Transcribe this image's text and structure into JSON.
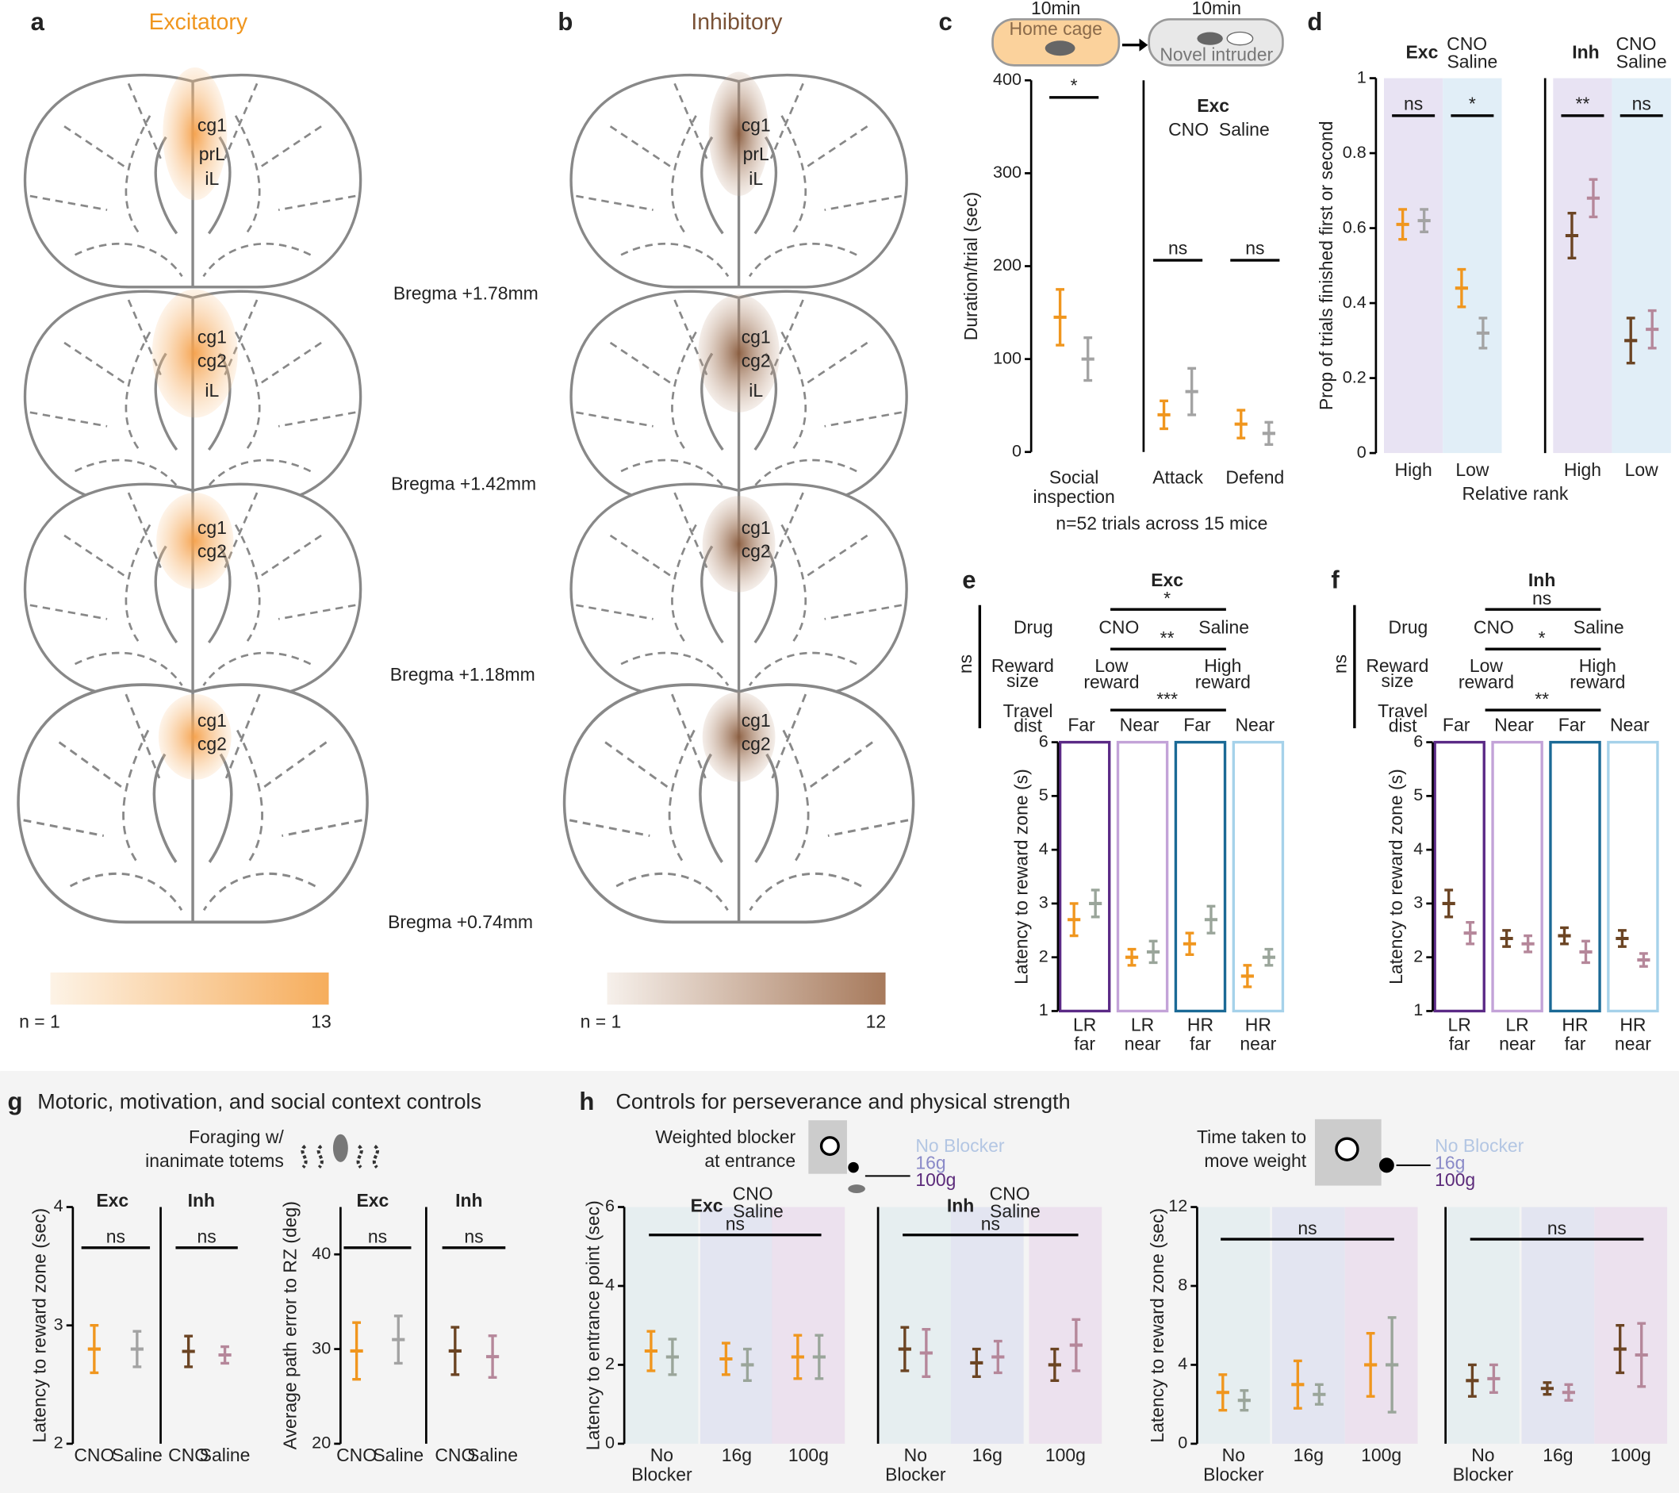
{
  "panels": {
    "a": {
      "letter": "a",
      "title": "Excitatory",
      "regions": [
        [
          "cg1",
          "prL",
          "iL"
        ],
        [
          "cg1",
          "cg2",
          "iL"
        ],
        [
          "cg1",
          "cg2"
        ],
        [
          "cg1",
          "cg2"
        ]
      ],
      "colorbar": {
        "min_label": "n = 1",
        "max": 13
      }
    },
    "b": {
      "letter": "b",
      "title": "Inhibitory",
      "regions": [
        [
          "cg1",
          "prL",
          "iL"
        ],
        [
          "cg1",
          "cg2",
          "iL"
        ],
        [
          "cg1",
          "cg2"
        ],
        [
          "cg1",
          "cg2"
        ]
      ],
      "colorbar": {
        "min_label": "n = 1",
        "max": 12
      }
    },
    "c": {
      "letter": "c",
      "timeline": [
        {
          "duration": "10min",
          "label": "Home cage"
        },
        {
          "duration": "10min",
          "label": "Novel intruder"
        }
      ],
      "note": "n=52 trials across 15 mice"
    },
    "d": {
      "letter": "d",
      "xlabel": "Relative rank"
    },
    "e": {
      "letter": "e"
    },
    "f": {
      "letter": "f"
    },
    "g": {
      "letter": "g",
      "title": "Motoric, motivation, and social context controls",
      "task": [
        "Foraging w/",
        "inanimate totems"
      ]
    },
    "h": {
      "letter": "h",
      "title": "Controls for perseverance and physical strength",
      "tasks": [
        [
          "Weighted blocker",
          "at entrance"
        ],
        [
          "Time taken to",
          "move weight"
        ]
      ],
      "conditions": [
        "No Blocker",
        "16g",
        "100g"
      ]
    }
  },
  "bregma": [
    "Bregma +1.78mm",
    "Bregma +1.42mm",
    "Bregma +1.18mm",
    "Bregma +0.74mm"
  ],
  "chart_data": [
    {
      "type": "errorbar",
      "ylim": [
        0,
        400
      ],
      "yticks": [
        0,
        100,
        200,
        300,
        400
      ],
      "ylabel": "Duration/trial (sec)",
      "categories": [
        [
          "Social",
          "inspection"
        ],
        "Attack",
        "Defend"
      ],
      "series": [
        {
          "name": "CNO",
          "color": "#f0961e",
          "values": [
            145,
            40,
            30
          ],
          "errors": [
            30,
            15,
            15
          ]
        },
        {
          "name": "Saline",
          "color": "#a3a3a3",
          "values": [
            100,
            65,
            20
          ],
          "errors": [
            23,
            25,
            12
          ]
        }
      ],
      "sig": [
        "*",
        "ns",
        "ns"
      ],
      "legend_title": "Exc"
    },
    {
      "type": "errorbar",
      "ylim": [
        0,
        1
      ],
      "yticks": [
        0,
        0.2,
        0.4,
        0.6,
        0.8,
        1
      ],
      "ylabel": "Prop of trials finished first or second",
      "categories": [
        "High",
        "Low"
      ],
      "category_colors": [
        "#2d2d80",
        "#3b8fd0"
      ],
      "band_colors": [
        "#e8e3f3",
        "#e1eef7"
      ],
      "series": [
        {
          "name": "CNO",
          "color": "#f0961e",
          "values": [
            0.61,
            0.44
          ],
          "errors": [
            0.04,
            0.05
          ]
        },
        {
          "name": "Saline",
          "color": "#a3a3a3",
          "values": [
            0.62,
            0.32
          ],
          "errors": [
            0.03,
            0.04
          ]
        }
      ],
      "sig": [
        "ns",
        "*"
      ],
      "legend_title": "Exc"
    },
    {
      "type": "errorbar",
      "ylim": [
        0,
        1
      ],
      "categories": [
        "High",
        "Low"
      ],
      "category_colors": [
        "#2d2d80",
        "#3b8fd0"
      ],
      "band_colors": [
        "#e8e3f3",
        "#e1eef7"
      ],
      "series": [
        {
          "name": "CNO",
          "color": "#6b4423",
          "values": [
            0.58,
            0.3
          ],
          "errors": [
            0.06,
            0.06
          ]
        },
        {
          "name": "Saline",
          "color": "#b5879a",
          "values": [
            0.68,
            0.33
          ],
          "errors": [
            0.05,
            0.05
          ]
        }
      ],
      "sig": [
        "**",
        "ns"
      ],
      "legend_title": "Inh"
    },
    {
      "type": "errorbar",
      "title": "Exc",
      "ylim": [
        1,
        6
      ],
      "yticks": [
        1,
        2,
        3,
        4,
        5,
        6
      ],
      "ylabel": "Latency to reward zone (s)",
      "categories": [
        [
          "LR",
          "far"
        ],
        [
          "LR",
          "near"
        ],
        [
          "HR",
          "far"
        ],
        [
          "HR",
          "near"
        ]
      ],
      "category_colors": [
        "#5b2a86",
        "#c3a3d8",
        "#1b6a96",
        "#a6d2ea"
      ],
      "boxed": true,
      "series": [
        {
          "name": "CNO",
          "color": "#f0961e",
          "values": [
            2.7,
            2.0,
            2.25,
            1.65
          ],
          "errors": [
            0.3,
            0.15,
            0.2,
            0.2
          ]
        },
        {
          "name": "Saline",
          "color": "#9aa59a",
          "values": [
            3.0,
            2.1,
            2.7,
            2.0
          ],
          "errors": [
            0.25,
            0.2,
            0.25,
            0.15
          ]
        }
      ],
      "factor_labels": [
        [
          "Drug"
        ],
        [
          "Reward",
          "size"
        ],
        [
          "Travel",
          "dist"
        ]
      ],
      "reward_levels": [
        [
          "Low",
          "reward"
        ],
        [
          "High",
          "reward"
        ]
      ],
      "distance_levels": [
        "Far",
        "Near",
        "Far",
        "Near"
      ],
      "effects": [
        "*",
        "**",
        "***"
      ],
      "interaction": "ns"
    },
    {
      "type": "errorbar",
      "title": "Inh",
      "ylim": [
        1,
        6
      ],
      "yticks": [
        1,
        2,
        3,
        4,
        5,
        6
      ],
      "ylabel": "Latency to reward zone (s)",
      "categories": [
        [
          "LR",
          "far"
        ],
        [
          "LR",
          "near"
        ],
        [
          "HR",
          "far"
        ],
        [
          "HR",
          "near"
        ]
      ],
      "category_colors": [
        "#5b2a86",
        "#c3a3d8",
        "#1b6a96",
        "#a6d2ea"
      ],
      "boxed": true,
      "series": [
        {
          "name": "CNO",
          "color": "#6b4423",
          "values": [
            3.0,
            2.35,
            2.4,
            2.35
          ],
          "errors": [
            0.25,
            0.15,
            0.15,
            0.15
          ]
        },
        {
          "name": "Saline",
          "color": "#b5879a",
          "values": [
            2.45,
            2.25,
            2.1,
            1.95
          ],
          "errors": [
            0.2,
            0.15,
            0.2,
            0.12
          ]
        }
      ],
      "factor_labels": [
        [
          "Drug"
        ],
        [
          "Reward",
          "size"
        ],
        [
          "Travel",
          "dist"
        ]
      ],
      "reward_levels": [
        [
          "Low",
          "reward"
        ],
        [
          "High",
          "reward"
        ]
      ],
      "distance_levels": [
        "Far",
        "Near",
        "Far",
        "Near"
      ],
      "effects": [
        "ns",
        "*",
        "**"
      ],
      "interaction": "ns"
    },
    {
      "type": "errorbar",
      "title": "Exc",
      "ylim": [
        2,
        4
      ],
      "yticks": [
        2,
        3,
        4
      ],
      "ylabel": "Latency to reward zone (sec)",
      "categories": [
        "CNO",
        "Saline"
      ],
      "category_colors": [
        "#f0961e",
        "#a3a3a3"
      ],
      "values": [
        2.8,
        2.8
      ],
      "errors": [
        0.2,
        0.15
      ],
      "sig_all": "ns"
    },
    {
      "type": "errorbar",
      "title": "Inh",
      "ylim": [
        2,
        4
      ],
      "categories": [
        "CNO",
        "Saline"
      ],
      "category_colors": [
        "#6b4423",
        "#b5879a"
      ],
      "values": [
        2.78,
        2.75
      ],
      "errors": [
        0.13,
        0.07
      ],
      "sig_all": "ns"
    },
    {
      "type": "errorbar",
      "title": "Exc",
      "ylim": [
        20,
        45
      ],
      "yticks": [
        20,
        30,
        40
      ],
      "ylabel": "Average path error to RZ (deg)",
      "categories": [
        "CNO",
        "Saline"
      ],
      "category_colors": [
        "#f0961e",
        "#a3a3a3"
      ],
      "values": [
        29.8,
        31
      ],
      "errors": [
        3,
        2.5
      ],
      "sig_all": "ns"
    },
    {
      "type": "errorbar",
      "title": "Inh",
      "ylim": [
        20,
        45
      ],
      "categories": [
        "CNO",
        "Saline"
      ],
      "category_colors": [
        "#6b4423",
        "#b5879a"
      ],
      "values": [
        29.8,
        29.2
      ],
      "errors": [
        2.5,
        2.2
      ],
      "sig_all": "ns"
    },
    {
      "type": "errorbar",
      "ylim": [
        0,
        6
      ],
      "yticks": [
        0,
        2,
        4,
        6
      ],
      "ylabel": "Latency to entrance point (sec)",
      "categories": [
        [
          "No",
          "Blocker"
        ],
        "16g",
        "100g"
      ],
      "category_colors": [
        "#b3c6e3",
        "#8a8ac8",
        "#5b2a7a"
      ],
      "band_colors": [
        "#e6eef0",
        "#e3e5f1",
        "#ece1ee"
      ],
      "series": [
        {
          "name": "CNO",
          "color": "#f0961e",
          "values": [
            2.35,
            2.15,
            2.2
          ],
          "errors": [
            0.5,
            0.4,
            0.55
          ]
        },
        {
          "name": "Saline",
          "color": "#9aa59a",
          "values": [
            2.2,
            2.0,
            2.2
          ],
          "errors": [
            0.45,
            0.4,
            0.55
          ]
        }
      ],
      "sig_all": "ns",
      "legend_title": "Exc"
    },
    {
      "type": "errorbar",
      "ylim": [
        0,
        6
      ],
      "categories": [
        [
          "No",
          "Blocker"
        ],
        "16g",
        "100g"
      ],
      "category_colors": [
        "#b3c6e3",
        "#8a8ac8",
        "#5b2a7a"
      ],
      "band_colors": [
        "#e6eef0",
        "#e3e5f1",
        "#ece1ee"
      ],
      "series": [
        {
          "name": "CNO",
          "color": "#6b4423",
          "values": [
            2.4,
            2.05,
            2.0
          ],
          "errors": [
            0.55,
            0.35,
            0.4
          ]
        },
        {
          "name": "Saline",
          "color": "#b5879a",
          "values": [
            2.3,
            2.2,
            2.5
          ],
          "errors": [
            0.6,
            0.4,
            0.65
          ]
        }
      ],
      "sig_all": "ns",
      "legend_title": "Inh"
    },
    {
      "type": "errorbar",
      "ylim": [
        0,
        12
      ],
      "yticks": [
        0,
        4,
        8,
        12
      ],
      "ylabel": "Latency to reward zone (sec)",
      "categories": [
        [
          "No",
          "Blocker"
        ],
        "16g",
        "100g"
      ],
      "category_colors": [
        "#b3c6e3",
        "#8a8ac8",
        "#5b2a7a"
      ],
      "band_colors": [
        "#e6eef0",
        "#e3e5f1",
        "#ece1ee"
      ],
      "series": [
        {
          "color": "#f0961e",
          "values": [
            2.6,
            3.0,
            4.0
          ],
          "errors": [
            0.9,
            1.2,
            1.6
          ]
        },
        {
          "color": "#9aa59a",
          "values": [
            2.2,
            2.5,
            4.0
          ],
          "errors": [
            0.5,
            0.5,
            2.4
          ]
        }
      ],
      "sig_all": "ns"
    },
    {
      "type": "errorbar",
      "ylim": [
        0,
        12
      ],
      "categories": [
        [
          "No",
          "Blocker"
        ],
        "16g",
        "100g"
      ],
      "category_colors": [
        "#b3c6e3",
        "#8a8ac8",
        "#5b2a7a"
      ],
      "band_colors": [
        "#e6eef0",
        "#e3e5f1",
        "#ece1ee"
      ],
      "series": [
        {
          "color": "#6b4423",
          "values": [
            3.2,
            2.8,
            4.8
          ],
          "errors": [
            0.8,
            0.3,
            1.2
          ]
        },
        {
          "color": "#b5879a",
          "values": [
            3.3,
            2.6,
            4.5
          ],
          "errors": [
            0.7,
            0.4,
            1.6
          ]
        }
      ],
      "sig_all": "ns"
    }
  ]
}
